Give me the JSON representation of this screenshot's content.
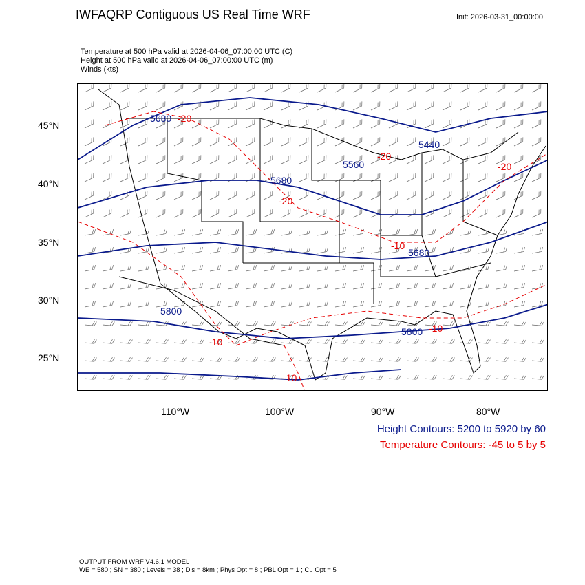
{
  "header": {
    "title": "IWFAQRP Contiguous US Real Time WRF",
    "init": "Init: 2026-03-31_00:00:00"
  },
  "variables": {
    "line1": "Temperature at 500 hPa valid at 2026-04-06_07:00:00 UTC   (C)",
    "line2": "Height at 500 hPa valid at 2026-04-06_07:00:00 UTC   (m)",
    "line3": "Winds   (kts)"
  },
  "map": {
    "lat_labels": [
      "45°N",
      "40°N",
      "35°N",
      "30°N",
      "25°N"
    ],
    "lon_labels": [
      "110°W",
      "100°W",
      "90°W",
      "80°W"
    ],
    "height_contour_labels": [
      "5680",
      "5560",
      "5440",
      "5680",
      "5680",
      "5800",
      "5800"
    ],
    "temperature_contour_labels": [
      "-20",
      "-20",
      "-20",
      "-20",
      "-10",
      "-10",
      "-10",
      "-10"
    ],
    "height_color": "#0a1a8c",
    "temperature_color": "#e60000"
  },
  "legend": {
    "height": "Height Contours: 5200 to 5920 by 60",
    "temperature": "Temperature Contours: -45 to 5 by 5"
  },
  "footer": {
    "line1": "OUTPUT FROM WRF V4.6.1 MODEL",
    "line2": "WE = 580 ; SN = 380 ; Levels = 38 ; Dis = 8km ; Phys Opt = 8 ; PBL Opt = 1 ; Cu Opt = 5"
  }
}
